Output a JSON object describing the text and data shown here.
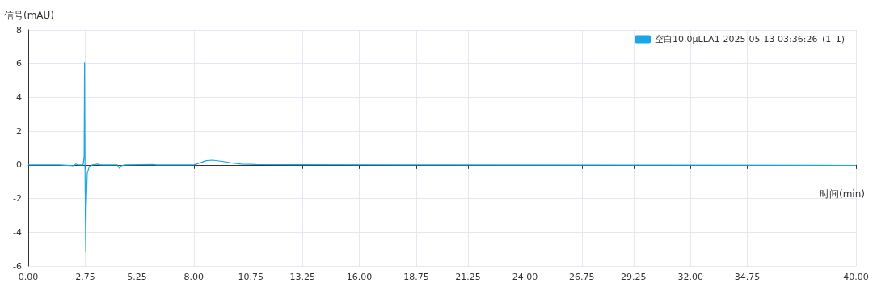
{
  "chart_data": {
    "type": "line",
    "xlabel": "时间(min)",
    "ylabel": "信号(mAU)",
    "xlim": [
      0,
      40
    ],
    "ylim": [
      -6,
      8
    ],
    "xticks": [
      {
        "value": 0,
        "label": "0.00"
      },
      {
        "value": 2.75,
        "label": "2.75"
      },
      {
        "value": 5.25,
        "label": "5.25"
      },
      {
        "value": 8,
        "label": "8.00"
      },
      {
        "value": 10.75,
        "label": "10.75"
      },
      {
        "value": 13.25,
        "label": "13.25"
      },
      {
        "value": 16,
        "label": "16.00"
      },
      {
        "value": 18.75,
        "label": "18.75"
      },
      {
        "value": 21.25,
        "label": "21.25"
      },
      {
        "value": 24,
        "label": "24.00"
      },
      {
        "value": 26.75,
        "label": "26.75"
      },
      {
        "value": 29.25,
        "label": "29.25"
      },
      {
        "value": 32,
        "label": "32.00"
      },
      {
        "value": 34.75,
        "label": "34.75"
      },
      {
        "value": 40,
        "label": "40.00"
      }
    ],
    "yticks": [
      -6,
      -4,
      -2,
      0,
      2,
      4,
      6,
      8
    ],
    "grid": true,
    "legend": "top right",
    "marker": "none",
    "line_style": "solid",
    "series": [
      {
        "name": "空白10.0μLLA1-2025-05-13 03:36:26_(1_1)",
        "color": "#1aa6e6",
        "x": [
          0,
          1.5,
          2.2,
          2.3,
          2.4,
          2.65,
          2.7,
          2.72,
          2.74,
          2.76,
          2.78,
          2.8,
          2.85,
          2.95,
          3.1,
          3.35,
          3.5,
          4.3,
          4.4,
          4.5,
          4.7,
          6,
          6.2,
          8,
          8.3,
          8.6,
          8.9,
          9.3,
          9.8,
          10.3,
          11,
          13,
          20,
          30,
          40
        ],
        "values": [
          0,
          0,
          -0.05,
          0.05,
          0,
          0,
          0.5,
          6.05,
          0,
          -3,
          -5.15,
          -2.5,
          -0.5,
          -0.1,
          0,
          0.05,
          0,
          0,
          -0.2,
          -0.05,
          0,
          0.02,
          0,
          0,
          0.12,
          0.25,
          0.28,
          0.22,
          0.12,
          0.05,
          0.02,
          0.01,
          0,
          -0.01,
          -0.03
        ]
      }
    ]
  }
}
